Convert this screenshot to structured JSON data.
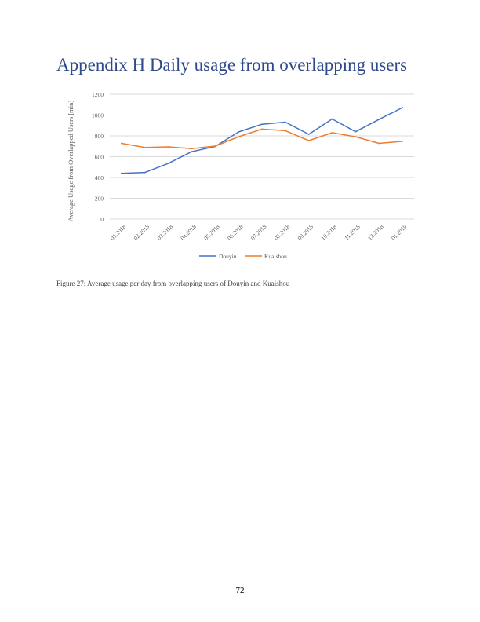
{
  "page": {
    "heading": "Appendix H Daily usage from overlapping users",
    "caption": "Figure 27: Average usage per day from overlapping users of Douyin and Kuaishou",
    "page_number": "- 72 -"
  },
  "colors": {
    "heading": "#2F4A8A",
    "gridline": "#D9D9D9",
    "axis_text": "#595959"
  },
  "chart_data": {
    "type": "line",
    "title": "",
    "xlabel": "",
    "ylabel": "Average Usage from Overlapped Users [min]",
    "categories": [
      "01.2018",
      "02.2018",
      "03.2018",
      "04.2018",
      "05.2018",
      "06.2018",
      "07.2018",
      "08.2018",
      "09.2018",
      "10.2018",
      "11.2018",
      "12.2018",
      "01.2019"
    ],
    "ylim": [
      0,
      1200
    ],
    "yticks": [
      0,
      200,
      400,
      600,
      800,
      1000,
      1200
    ],
    "grid": true,
    "legend_position": "bottom",
    "series": [
      {
        "name": "Douyin",
        "color": "#4472C4",
        "values": [
          440,
          448,
          535,
          648,
          698,
          838,
          912,
          932,
          815,
          962,
          840,
          958,
          1072
        ]
      },
      {
        "name": "Kuaishou",
        "color": "#ED7D31",
        "values": [
          728,
          688,
          694,
          678,
          702,
          792,
          865,
          850,
          755,
          830,
          792,
          728,
          748
        ]
      }
    ]
  }
}
